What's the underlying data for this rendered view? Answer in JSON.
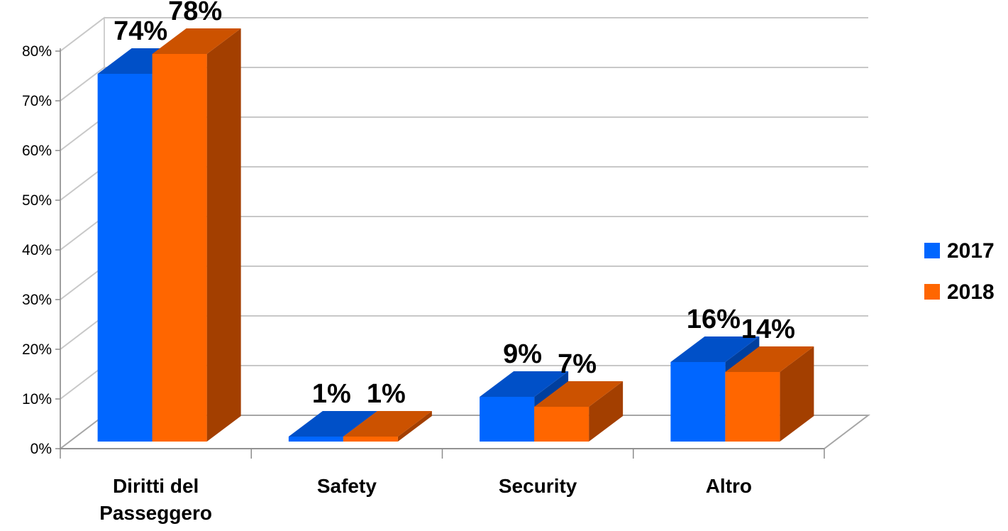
{
  "chart_data": {
    "type": "bar",
    "categories": [
      "Diritti del|Passeggero",
      "Safety",
      "Security",
      "Altro"
    ],
    "series": [
      {
        "name": "2017",
        "values": [
          74,
          1,
          9,
          16
        ],
        "labels": [
          "74%",
          "1%",
          "9%",
          "16%"
        ],
        "color": "#0066ff",
        "top_color": "#0050c8",
        "side_color": "#003f9e"
      },
      {
        "name": "2018",
        "values": [
          78,
          1,
          7,
          14
        ],
        "labels": [
          "78%",
          "1%",
          "7%",
          "14%"
        ],
        "color": "#ff6600",
        "top_color": "#cc5200",
        "side_color": "#a33f00"
      }
    ],
    "y_ticks": [
      "0%",
      "10%",
      "20%",
      "30%",
      "40%",
      "50%",
      "60%",
      "70%",
      "80%"
    ],
    "ylim": [
      0,
      80
    ],
    "grid": true,
    "legend_position": "right",
    "title": "",
    "xlabel": "",
    "ylabel": ""
  }
}
